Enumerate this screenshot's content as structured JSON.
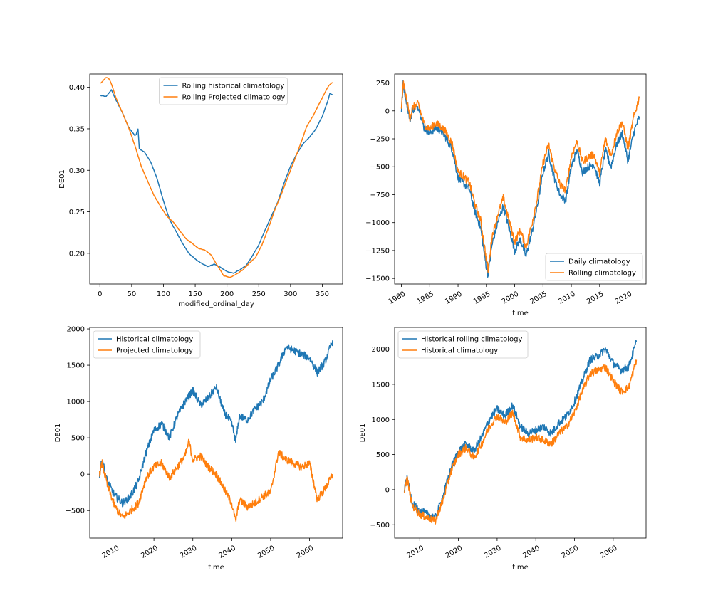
{
  "colors": {
    "blue": "#1f77b4",
    "orange": "#ff7f0e"
  },
  "chart_data": [
    {
      "type": "line",
      "xlabel": "modified_ordinal_day",
      "ylabel": "DE01",
      "xlim": [
        -16,
        382
      ],
      "ylim": [
        0.163,
        0.416
      ],
      "xticks": [
        0,
        50,
        100,
        150,
        200,
        250,
        300,
        350
      ],
      "xtick_labels": [
        "0",
        "50",
        "100",
        "150",
        "200",
        "250",
        "300",
        "350"
      ],
      "yticks": [
        0.2,
        0.25,
        0.3,
        0.35,
        0.4
      ],
      "ytick_labels": [
        "0.20",
        "0.25",
        "0.30",
        "0.35",
        "0.40"
      ],
      "grid": false,
      "legend_position": "top-center",
      "series": [
        {
          "name": "Rolling historical climatology",
          "color": "#1f77b4",
          "x": [
            1,
            10,
            18,
            25,
            35,
            45,
            55,
            57,
            60,
            62,
            70,
            80,
            90,
            100,
            110,
            120,
            130,
            140,
            150,
            160,
            170,
            180,
            190,
            200,
            210,
            220,
            230,
            240,
            250,
            260,
            270,
            280,
            290,
            300,
            310,
            320,
            330,
            340,
            350,
            358,
            362,
            366
          ],
          "y": [
            0.39,
            0.389,
            0.397,
            0.385,
            0.37,
            0.352,
            0.342,
            0.343,
            0.35,
            0.326,
            0.322,
            0.31,
            0.29,
            0.263,
            0.24,
            0.226,
            0.212,
            0.2,
            0.193,
            0.188,
            0.184,
            0.187,
            0.183,
            0.178,
            0.176,
            0.18,
            0.185,
            0.197,
            0.21,
            0.228,
            0.245,
            0.262,
            0.285,
            0.305,
            0.32,
            0.332,
            0.34,
            0.35,
            0.365,
            0.382,
            0.393,
            0.391
          ]
        },
        {
          "name": "Rolling Projected climatology",
          "color": "#ff7f0e",
          "x": [
            1,
            5,
            10,
            15,
            20,
            25,
            35,
            45,
            55,
            65,
            75,
            85,
            95,
            105,
            115,
            125,
            135,
            145,
            155,
            165,
            175,
            185,
            195,
            205,
            215,
            225,
            235,
            245,
            255,
            265,
            275,
            285,
            295,
            305,
            315,
            325,
            335,
            345,
            355,
            360,
            366
          ],
          "y": [
            0.405,
            0.408,
            0.412,
            0.41,
            0.4,
            0.388,
            0.37,
            0.352,
            0.33,
            0.305,
            0.287,
            0.27,
            0.257,
            0.245,
            0.238,
            0.228,
            0.218,
            0.212,
            0.206,
            0.204,
            0.198,
            0.185,
            0.173,
            0.171,
            0.175,
            0.18,
            0.188,
            0.195,
            0.21,
            0.23,
            0.252,
            0.27,
            0.29,
            0.31,
            0.33,
            0.352,
            0.365,
            0.38,
            0.395,
            0.402,
            0.406
          ]
        }
      ]
    },
    {
      "type": "line",
      "xlabel": "time",
      "ylabel": "",
      "xlim": [
        1978.8,
        2023.2
      ],
      "ylim": [
        -1550,
        330
      ],
      "xticks": [
        1980,
        1985,
        1990,
        1995,
        2000,
        2005,
        2010,
        2015,
        2020
      ],
      "xtick_labels": [
        "1980",
        "1985",
        "1990",
        "1995",
        "2000",
        "2005",
        "2010",
        "2015",
        "2020"
      ],
      "yticks": [
        -1500,
        -1250,
        -1000,
        -750,
        -500,
        -250,
        0,
        250
      ],
      "ytick_labels": [
        "−1500",
        "−1250",
        "−1000",
        "−750",
        "−500",
        "−250",
        "0",
        "250"
      ],
      "grid": false,
      "legend_position": "lower-right",
      "series": [
        {
          "name": "Daily climatology",
          "color": "#1f77b4",
          "x": [
            1980,
            1980.3,
            1981,
            1981.5,
            1982,
            1983,
            1984,
            1985,
            1986,
            1987,
            1988,
            1989,
            1990,
            1991,
            1992,
            1993,
            1994,
            1995,
            1995.3,
            1996,
            1997,
            1998,
            1999,
            2000,
            2001,
            2002,
            2003,
            2004,
            2005,
            2006,
            2007,
            2008,
            2009,
            2010,
            2011,
            2012,
            2013,
            2014,
            2015,
            2016,
            2017,
            2018,
            2019,
            2020,
            2021,
            2022
          ],
          "y": [
            0,
            240,
            60,
            -80,
            10,
            40,
            -150,
            -200,
            -150,
            -180,
            -250,
            -350,
            -600,
            -650,
            -700,
            -900,
            -1050,
            -1400,
            -1470,
            -1200,
            -1000,
            -850,
            -1050,
            -1250,
            -1150,
            -1300,
            -1100,
            -850,
            -550,
            -380,
            -600,
            -750,
            -800,
            -500,
            -350,
            -550,
            -500,
            -480,
            -650,
            -350,
            -500,
            -300,
            -200,
            -450,
            -200,
            -50
          ]
        },
        {
          "name": "Rolling climatology",
          "color": "#ff7f0e",
          "x": [
            1980,
            1980.3,
            1981,
            1981.5,
            1982,
            1983,
            1984,
            1985,
            1986,
            1987,
            1988,
            1989,
            1990,
            1991,
            1992,
            1993,
            1994,
            1995,
            1995.3,
            1996,
            1997,
            1998,
            1999,
            2000,
            2001,
            2002,
            2003,
            2004,
            2005,
            2006,
            2007,
            2008,
            2009,
            2010,
            2011,
            2012,
            2013,
            2014,
            2015,
            2016,
            2017,
            2018,
            2019,
            2020,
            2021,
            2022
          ],
          "y": [
            0,
            255,
            80,
            -60,
            30,
            60,
            -120,
            -160,
            -110,
            -140,
            -200,
            -300,
            -540,
            -590,
            -640,
            -840,
            -980,
            -1330,
            -1420,
            -1130,
            -930,
            -780,
            -980,
            -1170,
            -1070,
            -1220,
            -1020,
            -780,
            -470,
            -300,
            -510,
            -660,
            -710,
            -410,
            -270,
            -460,
            -410,
            -390,
            -560,
            -250,
            -400,
            -200,
            -100,
            -340,
            -60,
            120
          ]
        }
      ]
    },
    {
      "type": "line",
      "xlabel": "time",
      "ylabel": "DE01",
      "xlim": [
        2003.5,
        2068.5
      ],
      "ylim": [
        -880,
        2020
      ],
      "xticks": [
        2010,
        2020,
        2030,
        2040,
        2050,
        2060
      ],
      "xtick_labels": [
        "2010",
        "2020",
        "2030",
        "2040",
        "2050",
        "2060"
      ],
      "yticks": [
        -500,
        0,
        500,
        1000,
        1500,
        2000
      ],
      "ytick_labels": [
        "−500",
        "0",
        "500",
        "1000",
        "1500",
        "2000"
      ],
      "grid": false,
      "legend_position": "top-left",
      "series": [
        {
          "name": "Historical climatology",
          "color": "#1f77b4",
          "x": [
            2006,
            2006.7,
            2008,
            2010,
            2012,
            2014,
            2016,
            2018,
            2020,
            2022,
            2024,
            2026,
            2028,
            2030,
            2032,
            2034,
            2036,
            2038,
            2040,
            2041,
            2042,
            2044,
            2046,
            2048,
            2050,
            2052,
            2054,
            2056,
            2058,
            2060,
            2062,
            2064,
            2066
          ],
          "y": [
            0,
            200,
            -100,
            -300,
            -400,
            -300,
            -100,
            300,
            600,
            700,
            500,
            800,
            1000,
            1150,
            950,
            1050,
            1200,
            850,
            700,
            450,
            800,
            750,
            900,
            1000,
            1300,
            1500,
            1750,
            1700,
            1650,
            1600,
            1400,
            1550,
            1850
          ]
        },
        {
          "name": "Projected climatology",
          "color": "#ff7f0e",
          "x": [
            2006,
            2006.7,
            2008,
            2010,
            2012,
            2014,
            2016,
            2018,
            2020,
            2022,
            2024,
            2026,
            2028,
            2029,
            2030,
            2032,
            2034,
            2036,
            2038,
            2040,
            2041,
            2042,
            2044,
            2046,
            2048,
            2050,
            2052,
            2054,
            2056,
            2058,
            2060,
            2062,
            2064,
            2066
          ],
          "y": [
            0,
            150,
            -150,
            -450,
            -600,
            -500,
            -400,
            -50,
            100,
            150,
            -50,
            100,
            250,
            450,
            200,
            250,
            100,
            0,
            -200,
            -400,
            -650,
            -350,
            -450,
            -400,
            -300,
            -250,
            300,
            200,
            150,
            100,
            150,
            -350,
            -200,
            0
          ]
        }
      ]
    },
    {
      "type": "line",
      "xlabel": "time",
      "ylabel": "DE01",
      "xlim": [
        2003.5,
        2068.5
      ],
      "ylim": [
        -690,
        2310
      ],
      "xticks": [
        2010,
        2020,
        2030,
        2040,
        2050,
        2060
      ],
      "xtick_labels": [
        "2010",
        "2020",
        "2030",
        "2040",
        "2050",
        "2060"
      ],
      "yticks": [
        -500,
        0,
        500,
        1000,
        1500,
        2000
      ],
      "ytick_labels": [
        "−500",
        "0",
        "500",
        "1000",
        "1500",
        "2000"
      ],
      "grid": false,
      "legend_position": "top-left",
      "series": [
        {
          "name": "Historical rolling climatology",
          "color": "#1f77b4",
          "x": [
            2006,
            2006.7,
            2008,
            2010,
            2012,
            2014,
            2016,
            2018,
            2020,
            2022,
            2024,
            2026,
            2028,
            2030,
            2032,
            2034,
            2036,
            2038,
            2040,
            2042,
            2044,
            2046,
            2048,
            2050,
            2052,
            2054,
            2056,
            2058,
            2060,
            2062,
            2064,
            2066
          ],
          "y": [
            0,
            180,
            -200,
            -300,
            -350,
            -400,
            -100,
            300,
            550,
            650,
            550,
            750,
            1000,
            1150,
            1050,
            1200,
            900,
            800,
            850,
            900,
            800,
            950,
            1050,
            1250,
            1550,
            1850,
            1900,
            2000,
            1800,
            1700,
            1750,
            2100
          ]
        },
        {
          "name": "Historical climatology",
          "color": "#ff7f0e",
          "x": [
            2006,
            2006.7,
            2008,
            2010,
            2012,
            2014,
            2016,
            2018,
            2020,
            2022,
            2024,
            2026,
            2028,
            2030,
            2032,
            2034,
            2036,
            2038,
            2040,
            2042,
            2044,
            2046,
            2048,
            2050,
            2052,
            2054,
            2056,
            2058,
            2060,
            2062,
            2064,
            2066
          ],
          "y": [
            0,
            170,
            -220,
            -350,
            -400,
            -450,
            -150,
            250,
            500,
            600,
            450,
            650,
            900,
            1050,
            950,
            1100,
            750,
            700,
            750,
            700,
            650,
            800,
            900,
            1100,
            1400,
            1650,
            1700,
            1750,
            1550,
            1400,
            1450,
            1850
          ]
        }
      ]
    }
  ]
}
